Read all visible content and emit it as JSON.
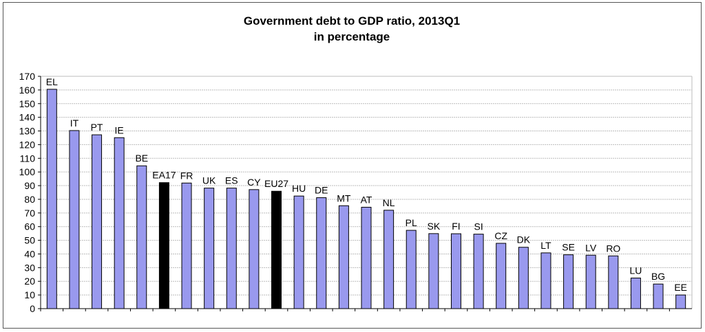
{
  "chart_data": {
    "type": "bar",
    "title": "Government debt to GDP ratio, 2013Q1",
    "subtitle": "in percentage",
    "xlabel": "",
    "ylabel": "",
    "ylim": [
      0,
      170
    ],
    "yticks": [
      0,
      10,
      20,
      30,
      40,
      50,
      60,
      70,
      80,
      90,
      100,
      110,
      120,
      130,
      140,
      150,
      160,
      170
    ],
    "grid": true,
    "legend": "none",
    "categories": [
      "EL",
      "IT",
      "PT",
      "IE",
      "BE",
      "EA17",
      "FR",
      "UK",
      "ES",
      "CY",
      "EU27",
      "HU",
      "DE",
      "MT",
      "AT",
      "NL",
      "PL",
      "SK",
      "FI",
      "SI",
      "CZ",
      "DK",
      "LT",
      "SE",
      "LV",
      "RO",
      "LU",
      "BG",
      "EE"
    ],
    "values": [
      160.5,
      130.3,
      127.2,
      125.1,
      104.5,
      92.2,
      91.9,
      88.2,
      88.2,
      87.1,
      85.9,
      82.4,
      81.2,
      75.3,
      74.2,
      72.0,
      57.3,
      54.9,
      54.8,
      54.5,
      47.8,
      44.9,
      40.8,
      39.4,
      39.1,
      38.6,
      22.4,
      18.0,
      10.0
    ],
    "highlight": [
      "EA17",
      "EU27"
    ],
    "colors": {
      "bar": "#9999ee",
      "bar_highlight": "#000000",
      "bar_stroke": "#000000",
      "grid": "#bbbbbb",
      "axis": "#000000"
    }
  }
}
